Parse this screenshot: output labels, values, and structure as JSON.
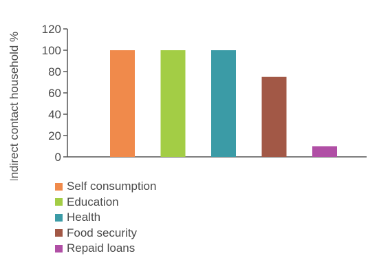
{
  "chart_data": {
    "type": "bar",
    "categories": [
      "Self consumption",
      "Education",
      "Health",
      "Food security",
      "Repaid loans"
    ],
    "values": [
      100,
      100,
      100,
      75,
      10
    ],
    "colors": [
      "#f08a4b",
      "#a3cd45",
      "#3b9ba6",
      "#a25846",
      "#b04fa5"
    ],
    "title": "",
    "xlabel": "",
    "ylabel": "Indirect contact household %",
    "ylim": [
      0,
      120
    ],
    "yticks": [
      0,
      20,
      40,
      60,
      80,
      100,
      120
    ],
    "grid": false,
    "legend": "bottom-left"
  }
}
